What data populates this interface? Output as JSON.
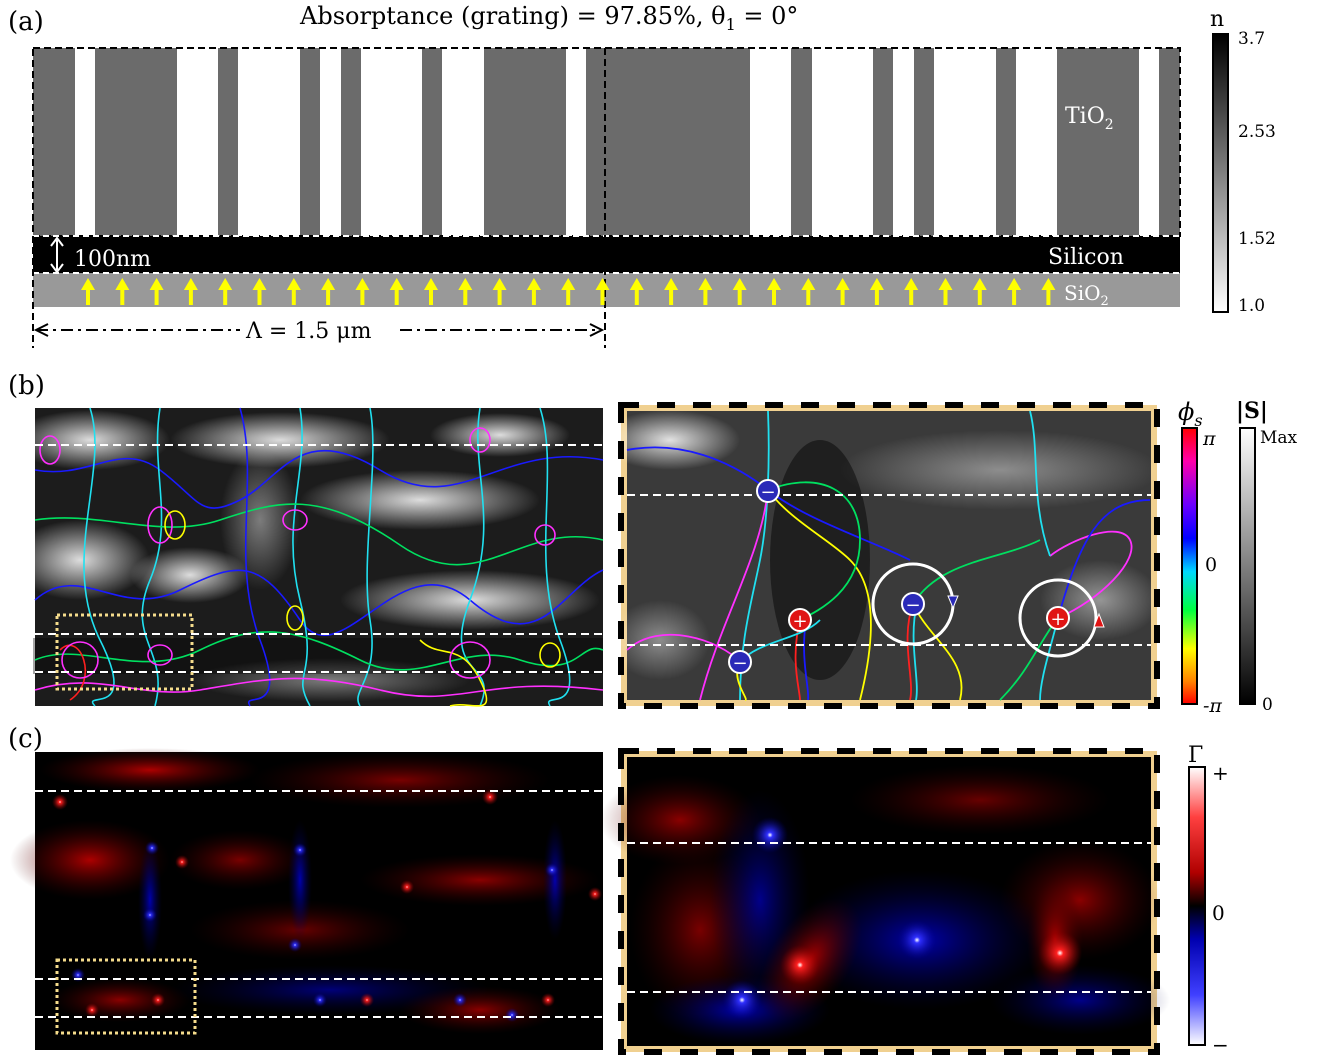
{
  "panel_a": {
    "label": "(a)",
    "title": "Absorptance (grating) = 97.85%,   θ",
    "title_sub": "1",
    "title_end": " = 0°",
    "layer_tio2": "TiO",
    "layer_tio2_sub": "2",
    "layer_silicon": "Silicon",
    "layer_sio2": "SiO",
    "layer_sio2_sub": "2",
    "thickness": "100nm",
    "period": "Λ = 1.5 μm",
    "colorbar": {
      "title": "n",
      "ticks": [
        "3.7",
        "2.53",
        "1.52",
        "1.0"
      ]
    }
  },
  "panel_b": {
    "label": "(b)",
    "phase_label": "ϕ",
    "phase_sub": "s",
    "phase_ticks": [
      "π",
      "0",
      "-π"
    ],
    "s_label": "|S|",
    "s_ticks": [
      "Max",
      "0"
    ],
    "singularities": [
      {
        "sign": "−",
        "color": "#2a2ab8"
      },
      {
        "sign": "+",
        "color": "#e01414"
      },
      {
        "sign": "−",
        "color": "#2a2ab8"
      },
      {
        "sign": "−",
        "color": "#2a2ab8"
      },
      {
        "sign": "+",
        "color": "#e01414"
      }
    ]
  },
  "panel_c": {
    "label": "(c)",
    "gamma_label": "Γ",
    "gamma_ticks": [
      "+",
      "0",
      "−"
    ]
  }
}
